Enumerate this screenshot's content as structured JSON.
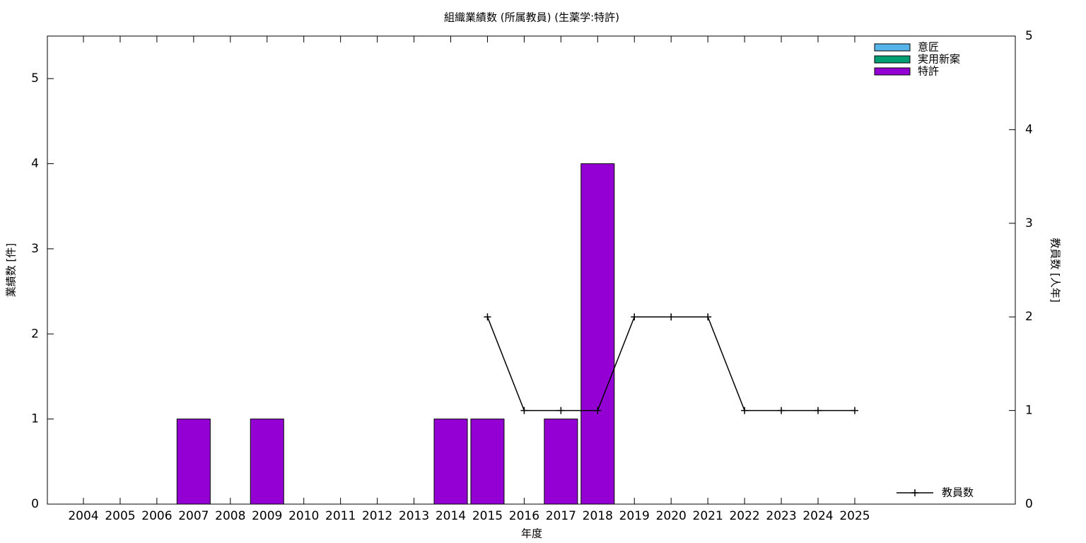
{
  "chart_data": {
    "type": "bar",
    "title": "組織業績数 (所属教員) (生薬学:特許)",
    "xlabel": "年度",
    "ylabel": "業績数 [件]",
    "y2label": "教員数 [人年]",
    "categories": [
      "2004",
      "2005",
      "2006",
      "2007",
      "2008",
      "2009",
      "2010",
      "2011",
      "2012",
      "2013",
      "2014",
      "2015",
      "2016",
      "2017",
      "2018",
      "2019",
      "2020",
      "2021",
      "2022",
      "2023",
      "2024",
      "2025"
    ],
    "series": [
      {
        "name": "意匠",
        "color": "#56b4e9",
        "values": [
          0,
          0,
          0,
          0,
          0,
          0,
          0,
          0,
          0,
          0,
          0,
          0,
          0,
          0,
          0,
          0,
          0,
          0,
          0,
          0,
          0,
          0
        ]
      },
      {
        "name": "実用新案",
        "color": "#009e73",
        "values": [
          0,
          0,
          0,
          0,
          0,
          0,
          0,
          0,
          0,
          0,
          0,
          0,
          0,
          0,
          0,
          0,
          0,
          0,
          0,
          0,
          0,
          0
        ]
      },
      {
        "name": "特許",
        "color": "#9400d3",
        "values": [
          0,
          0,
          0,
          1,
          0,
          1,
          0,
          0,
          0,
          0,
          1,
          1,
          0,
          1,
          4,
          0,
          0,
          0,
          0,
          0,
          0,
          0
        ]
      },
      {
        "name": "教員数",
        "type": "line",
        "axis": "y2",
        "color": "#000000",
        "values": [
          null,
          null,
          null,
          null,
          null,
          null,
          null,
          null,
          null,
          null,
          null,
          2,
          1,
          1,
          1,
          2,
          2,
          2,
          1,
          1,
          1,
          1
        ]
      }
    ],
    "ylim": [
      0,
      5.5
    ],
    "yticks": [
      0,
      1,
      2,
      3,
      4,
      5
    ],
    "y2lim": [
      0,
      5
    ],
    "y2ticks": [
      0,
      1,
      2,
      3,
      4,
      5
    ],
    "stacked": true
  }
}
